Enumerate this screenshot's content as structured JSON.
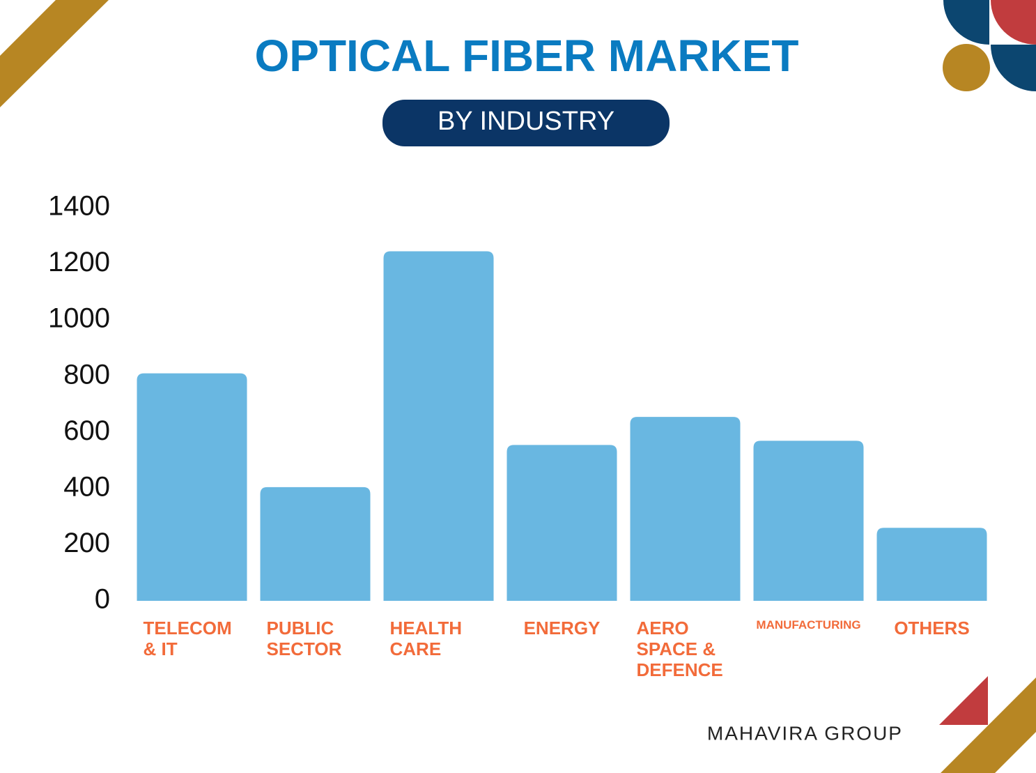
{
  "chart_data": {
    "type": "bar",
    "title": "OPTICAL FIBER MARKET",
    "subtitle": "BY INDUSTRY",
    "credit": "MAHAVIRA GROUP",
    "categories": [
      "TELECOM & IT",
      "PUBLIC SECTOR",
      "HEALTH CARE",
      "ENERGY",
      "AERO SPACE & DEFENCE",
      "MANUFACTURING",
      "OTHERS"
    ],
    "values": [
      810,
      405,
      1245,
      555,
      655,
      570,
      260
    ],
    "color": "#69b7e1",
    "label_color": "#f26b3a",
    "ylim": [
      0,
      1400
    ],
    "yticks": [
      0,
      200,
      400,
      600,
      800,
      1000,
      1200,
      1400
    ],
    "grid": false
  }
}
